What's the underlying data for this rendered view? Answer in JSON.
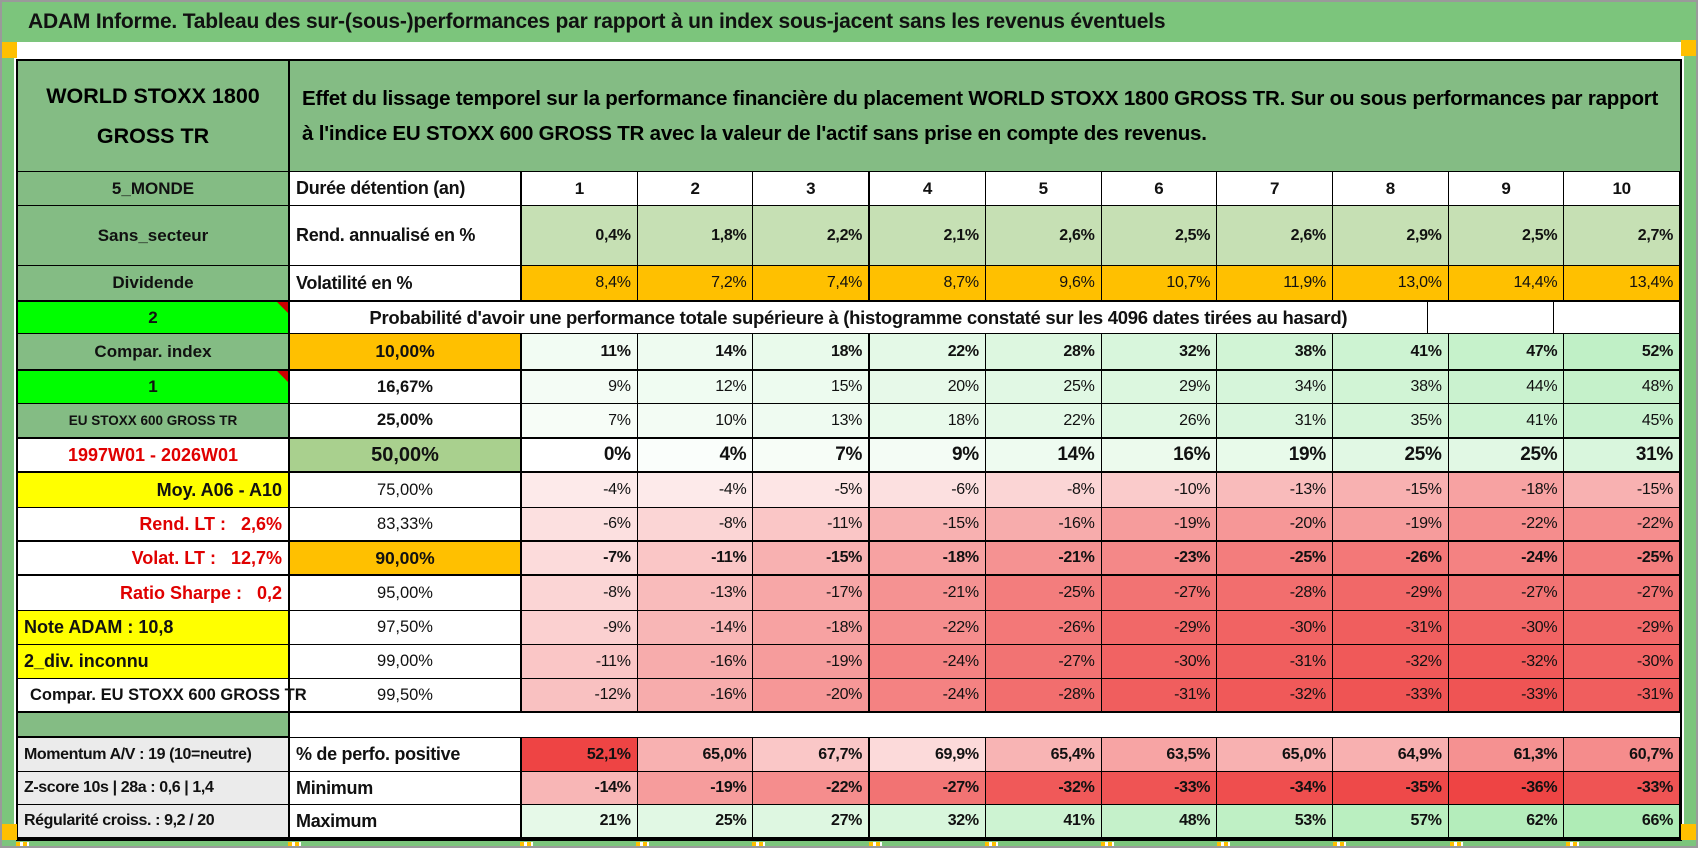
{
  "title": "ADAM Informe. Tableau des sur-(sous-)performances par rapport à un index sous-jacent sans les revenus éventuels",
  "asset": "WORLD STOXX 1800 GROSS TR",
  "description": "Effet du lissage temporel sur la performance financière du placement WORLD STOXX 1800 GROSS TR. Sur ou sous performances par rapport à l'indice EU STOXX 600 GROSS TR avec la valeur de l'actif sans prise en compte des revenus.",
  "columns": [
    "1",
    "2",
    "3",
    "4",
    "5",
    "6",
    "7",
    "8",
    "9",
    "10"
  ],
  "colors": {
    "frame": "#7cc57c",
    "cellGreen": "#84bc84",
    "lime": "#00fe00",
    "orange": "#ffc000",
    "lightGreen": "#c6e0b4",
    "midGreen": "#a9d08e",
    "yellow": "#ffff00",
    "grayCell": "#ebebeb",
    "redText": "#e00000",
    "scaleGreen": "#aaebb2",
    "scaleRed": "#ee4444"
  },
  "chart_data": {
    "type": "heatmap",
    "title": "Probabilité d'avoir une performance totale supérieure à (histogramme constaté sur les 4096 dates tirées au hasard)",
    "x": [
      1,
      2,
      3,
      4,
      5,
      6,
      7,
      8,
      9,
      10
    ],
    "xlabel": "Durée détention (an)",
    "series": [
      {
        "name": "Rend. annualisé en %",
        "values": [
          0.4,
          1.8,
          2.2,
          2.1,
          2.6,
          2.5,
          2.6,
          2.9,
          2.5,
          2.7
        ]
      },
      {
        "name": "Volatilité en %",
        "values": [
          8.4,
          7.2,
          7.4,
          8.7,
          9.6,
          10.7,
          11.9,
          13.0,
          14.4,
          13.4
        ]
      },
      {
        "name": "10,00%",
        "values": [
          11,
          14,
          18,
          22,
          28,
          32,
          38,
          41,
          47,
          52
        ]
      },
      {
        "name": "16,67%",
        "values": [
          9,
          12,
          15,
          20,
          25,
          29,
          34,
          38,
          44,
          48
        ]
      },
      {
        "name": "25,00%",
        "values": [
          7,
          10,
          13,
          18,
          22,
          26,
          31,
          35,
          41,
          45
        ]
      },
      {
        "name": "50,00%",
        "values": [
          0,
          4,
          7,
          9,
          14,
          16,
          19,
          25,
          25,
          31
        ]
      },
      {
        "name": "75,00%",
        "values": [
          -4,
          -4,
          -5,
          -6,
          -8,
          -10,
          -13,
          -15,
          -18,
          -15
        ]
      },
      {
        "name": "83,33%",
        "values": [
          -6,
          -8,
          -11,
          -15,
          -16,
          -19,
          -20,
          -19,
          -22,
          -22
        ]
      },
      {
        "name": "90,00%",
        "values": [
          -7,
          -11,
          -15,
          -18,
          -21,
          -23,
          -25,
          -26,
          -24,
          -25
        ]
      },
      {
        "name": "95,00%",
        "values": [
          -8,
          -13,
          -17,
          -21,
          -25,
          -27,
          -28,
          -29,
          -27,
          -27
        ]
      },
      {
        "name": "97,50%",
        "values": [
          -9,
          -14,
          -18,
          -22,
          -26,
          -29,
          -30,
          -31,
          -30,
          -29
        ]
      },
      {
        "name": "99,00%",
        "values": [
          -11,
          -16,
          -19,
          -24,
          -27,
          -30,
          -31,
          -32,
          -32,
          -30
        ]
      },
      {
        "name": "99,50%",
        "values": [
          -12,
          -16,
          -20,
          -24,
          -28,
          -31,
          -32,
          -33,
          -33,
          -31
        ]
      },
      {
        "name": "% de perfo. positive",
        "values": [
          52.1,
          65.0,
          67.7,
          69.9,
          65.4,
          63.5,
          65.0,
          64.9,
          61.3,
          60.7
        ]
      },
      {
        "name": "Minimum",
        "values": [
          -14,
          -19,
          -22,
          -27,
          -32,
          -33,
          -34,
          -35,
          -36,
          -33
        ]
      },
      {
        "name": "Maximum",
        "values": [
          21,
          25,
          27,
          32,
          41,
          48,
          53,
          57,
          62,
          66
        ]
      }
    ]
  },
  "grid": [
    {
      "h": 34,
      "type": "cols",
      "left": {
        "t": "5_MONDE",
        "cls": "g"
      },
      "mid": {
        "t": "Durée détention (an)",
        "cls": "lbl"
      }
    },
    {
      "h": 60,
      "type": "vals",
      "left": {
        "t": "Sans_secteur",
        "cls": "g"
      },
      "mid": {
        "t": "Rend. annualisé en %",
        "cls": "lbl"
      },
      "vals": [
        "0,4%",
        "1,8%",
        "2,2%",
        "2,1%",
        "2,6%",
        "2,5%",
        "2,6%",
        "2,9%",
        "2,5%",
        "2,7%"
      ],
      "bg": "lightGreen",
      "bold": true
    },
    {
      "h": 35,
      "type": "vals",
      "left": {
        "t": "Dividende",
        "cls": "g"
      },
      "mid": {
        "t": "Volatilité en %",
        "cls": "lbl"
      },
      "vals": [
        "8,4%",
        "7,2%",
        "7,4%",
        "8,7%",
        "9,6%",
        "10,7%",
        "11,9%",
        "13,0%",
        "14,4%",
        "13,4%"
      ],
      "bg": "orange"
    },
    {
      "h": 33,
      "type": "span",
      "rowcls": "tt",
      "left": {
        "t": "2",
        "cls": "lime",
        "corner": true
      },
      "text": "Probabilité d'avoir une performance totale supérieure à (histogramme constaté sur les 4096 dates tirées au hasard)"
    },
    {
      "h": 37,
      "type": "vals",
      "rowcls": "tb",
      "left": {
        "t": "Compar. index",
        "cls": "g"
      },
      "mid": {
        "t": "10,00%",
        "cls": "pc po"
      },
      "vals": [
        "11%",
        "14%",
        "18%",
        "22%",
        "28%",
        "32%",
        "38%",
        "41%",
        "47%",
        "52%"
      ],
      "scale": "pn",
      "bold": true
    },
    {
      "h": 33,
      "type": "vals",
      "left": {
        "t": "1",
        "cls": "lime",
        "corner": true
      },
      "mid": {
        "t": "16,67%",
        "cls": "pc pcb"
      },
      "vals": [
        "9%",
        "12%",
        "15%",
        "20%",
        "25%",
        "29%",
        "34%",
        "38%",
        "44%",
        "48%"
      ],
      "scale": "pn"
    },
    {
      "h": 34,
      "type": "vals",
      "left": {
        "t": "EU STOXX 600 GROSS TR",
        "cls": "g small"
      },
      "mid": {
        "t": "25,00%",
        "cls": "pc pcb"
      },
      "vals": [
        "7%",
        "10%",
        "13%",
        "18%",
        "22%",
        "26%",
        "31%",
        "35%",
        "41%",
        "45%"
      ],
      "scale": "pn"
    },
    {
      "h": 35,
      "type": "vals",
      "rowcls": "tt tb",
      "left": {
        "t": "1997W01 - 2026W01",
        "cls": "redc"
      },
      "mid": {
        "t": "50,00%",
        "cls": "pc pg"
      },
      "vals": [
        "0%",
        "4%",
        "7%",
        "9%",
        "14%",
        "16%",
        "19%",
        "25%",
        "25%",
        "31%"
      ],
      "scale": "pn",
      "bold": true,
      "fs": 19
    },
    {
      "h": 35,
      "type": "vals",
      "left": {
        "t": "Moy. A06 - A10",
        "cls": "yr"
      },
      "mid": {
        "t": "75,00%",
        "cls": "pc"
      },
      "vals": [
        "-4%",
        "-4%",
        "-5%",
        "-6%",
        "-8%",
        "-10%",
        "-13%",
        "-15%",
        "-18%",
        "-15%"
      ],
      "scale": "pn"
    },
    {
      "h": 33,
      "type": "vals",
      "left": {
        "t": "Rend. LT :   2,6%",
        "cls": "rr"
      },
      "mid": {
        "t": "83,33%",
        "cls": "pc"
      },
      "vals": [
        "-6%",
        "-8%",
        "-11%",
        "-15%",
        "-16%",
        "-19%",
        "-20%",
        "-19%",
        "-22%",
        "-22%"
      ],
      "scale": "pn"
    },
    {
      "h": 35,
      "type": "vals",
      "rowcls": "tt tb",
      "left": {
        "t": "Volat. LT :   12,7%",
        "cls": "rr"
      },
      "mid": {
        "t": "90,00%",
        "cls": "pc po"
      },
      "vals": [
        "-7%",
        "-11%",
        "-15%",
        "-18%",
        "-21%",
        "-23%",
        "-25%",
        "-26%",
        "-24%",
        "-25%"
      ],
      "scale": "pn",
      "bold": true
    },
    {
      "h": 35,
      "type": "vals",
      "left": {
        "t": "Ratio Sharpe :   0,2",
        "cls": "rr"
      },
      "mid": {
        "t": "95,00%",
        "cls": "pc"
      },
      "vals": [
        "-8%",
        "-13%",
        "-17%",
        "-21%",
        "-25%",
        "-27%",
        "-28%",
        "-29%",
        "-27%",
        "-27%"
      ],
      "scale": "pn"
    },
    {
      "h": 34,
      "type": "vals",
      "left": {
        "t": "Note ADAM : 10,8",
        "cls": "yl"
      },
      "mid": {
        "t": "97,50%",
        "cls": "pc"
      },
      "vals": [
        "-9%",
        "-14%",
        "-18%",
        "-22%",
        "-26%",
        "-29%",
        "-30%",
        "-31%",
        "-30%",
        "-29%"
      ],
      "scale": "pn"
    },
    {
      "h": 34,
      "type": "vals",
      "left": {
        "t": "2_div. inconnu",
        "cls": "yl"
      },
      "mid": {
        "t": "99,00%",
        "cls": "pc"
      },
      "vals": [
        "-11%",
        "-16%",
        "-19%",
        "-24%",
        "-27%",
        "-30%",
        "-31%",
        "-32%",
        "-32%",
        "-30%"
      ],
      "scale": "pn"
    },
    {
      "h": 34,
      "type": "vals",
      "rowcls": "tb",
      "left": {
        "t": "Compar. EU STOXX 600 GROSS TR",
        "cls": "pl"
      },
      "mid": {
        "t": "99,50%",
        "cls": "pc"
      },
      "vals": [
        "-12%",
        "-16%",
        "-20%",
        "-24%",
        "-28%",
        "-31%",
        "-32%",
        "-33%",
        "-33%",
        "-31%"
      ],
      "scale": "pn"
    },
    {
      "h": 24,
      "type": "sep",
      "left": {
        "t": "",
        "cls": "g"
      }
    },
    {
      "h": 35,
      "type": "vals",
      "rowcls": "tt",
      "left": {
        "t": "Momentum A/V : 19 (10=neutre)",
        "cls": "gr"
      },
      "mid": {
        "t": "% de perfo. positive",
        "cls": "lbl"
      },
      "vals": [
        "52,1%",
        "65,0%",
        "67,7%",
        "69,9%",
        "65,4%",
        "63,5%",
        "65,0%",
        "64,9%",
        "61,3%",
        "60,7%"
      ],
      "scale": "pf",
      "bold": true
    },
    {
      "h": 33,
      "type": "vals",
      "left": {
        "t": "Z-score 10s | 28a : 0,6 | 1,4",
        "cls": "gr"
      },
      "mid": {
        "t": "Minimum",
        "cls": "lbl"
      },
      "vals": [
        "-14%",
        "-19%",
        "-22%",
        "-27%",
        "-32%",
        "-33%",
        "-34%",
        "-35%",
        "-36%",
        "-33%"
      ],
      "scale": "pn",
      "bold": true
    },
    {
      "h": 33,
      "type": "vals",
      "left": {
        "t": "Régularité croiss. : 9,2 / 20",
        "cls": "gr"
      },
      "mid": {
        "t": "Maximum",
        "cls": "lbl"
      },
      "vals": [
        "21%",
        "25%",
        "27%",
        "32%",
        "41%",
        "48%",
        "53%",
        "57%",
        "62%",
        "66%"
      ],
      "scale": "pn",
      "bold": true
    }
  ]
}
